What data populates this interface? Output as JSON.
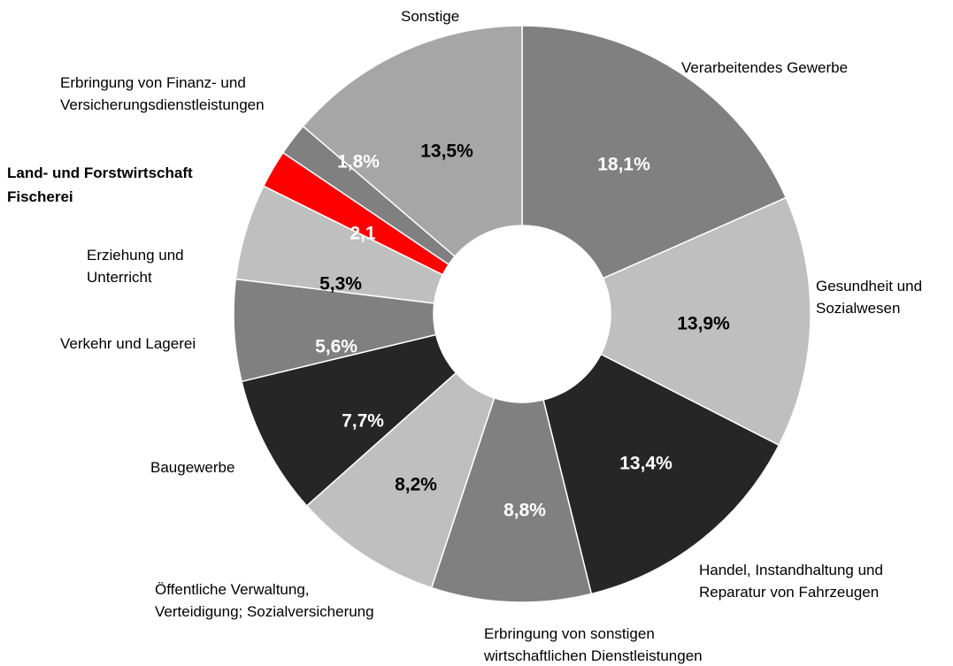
{
  "chart_data": {
    "type": "donut",
    "categories": [
      [
        "Verarbeitendes Gewerbe"
      ],
      [
        "Gesundheit und",
        "Sozialwesen"
      ],
      [
        "Handel, Instandhaltung und",
        "Reparatur von Fahrzeugen"
      ],
      [
        "Erbringung von sonstigen",
        "wirtschaftlichen Dienstleistungen"
      ],
      [
        "Öffentliche Verwaltung,",
        "Verteidigung; Sozialversicherung"
      ],
      [
        "Baugewerbe"
      ],
      [
        "Verkehr und Lagerei"
      ],
      [
        "Erziehung und",
        "Unterricht"
      ],
      [
        "Land- und Forstwirtschaft",
        "Fischerei"
      ],
      [
        "Erbringung von Finanz- und",
        "Versicherungsdienstleistungen"
      ],
      [
        "Sonstige"
      ]
    ],
    "values": [
      18.1,
      13.9,
      13.4,
      8.8,
      8.2,
      7.7,
      5.6,
      5.3,
      2.1,
      1.8,
      13.5
    ],
    "value_labels": [
      "18,1%",
      "13,9%",
      "13,4%",
      "8,8%",
      "8,2%",
      "7,7%",
      "5,6%",
      "5,3%",
      "2,1",
      "1,8%",
      "13,5%"
    ],
    "colors": [
      "#808080",
      "#bfbfbf",
      "#262626",
      "#808080",
      "#bfbfbf",
      "#262626",
      "#808080",
      "#bfbfbf",
      "#ff0000",
      "#808080",
      "#a6a6a6"
    ],
    "value_label_colors": [
      "#ffffff",
      "#000000",
      "#ffffff",
      "#ffffff",
      "#000000",
      "#ffffff",
      "#ffffff",
      "#000000",
      "#ffffff",
      "#ffffff",
      "#000000"
    ],
    "category_label_colors": [
      "#000000",
      "#000000",
      "#000000",
      "#000000",
      "#000000",
      "#000000",
      "#000000",
      "#000000",
      "#ff0000",
      "#000000",
      "#000000"
    ]
  }
}
